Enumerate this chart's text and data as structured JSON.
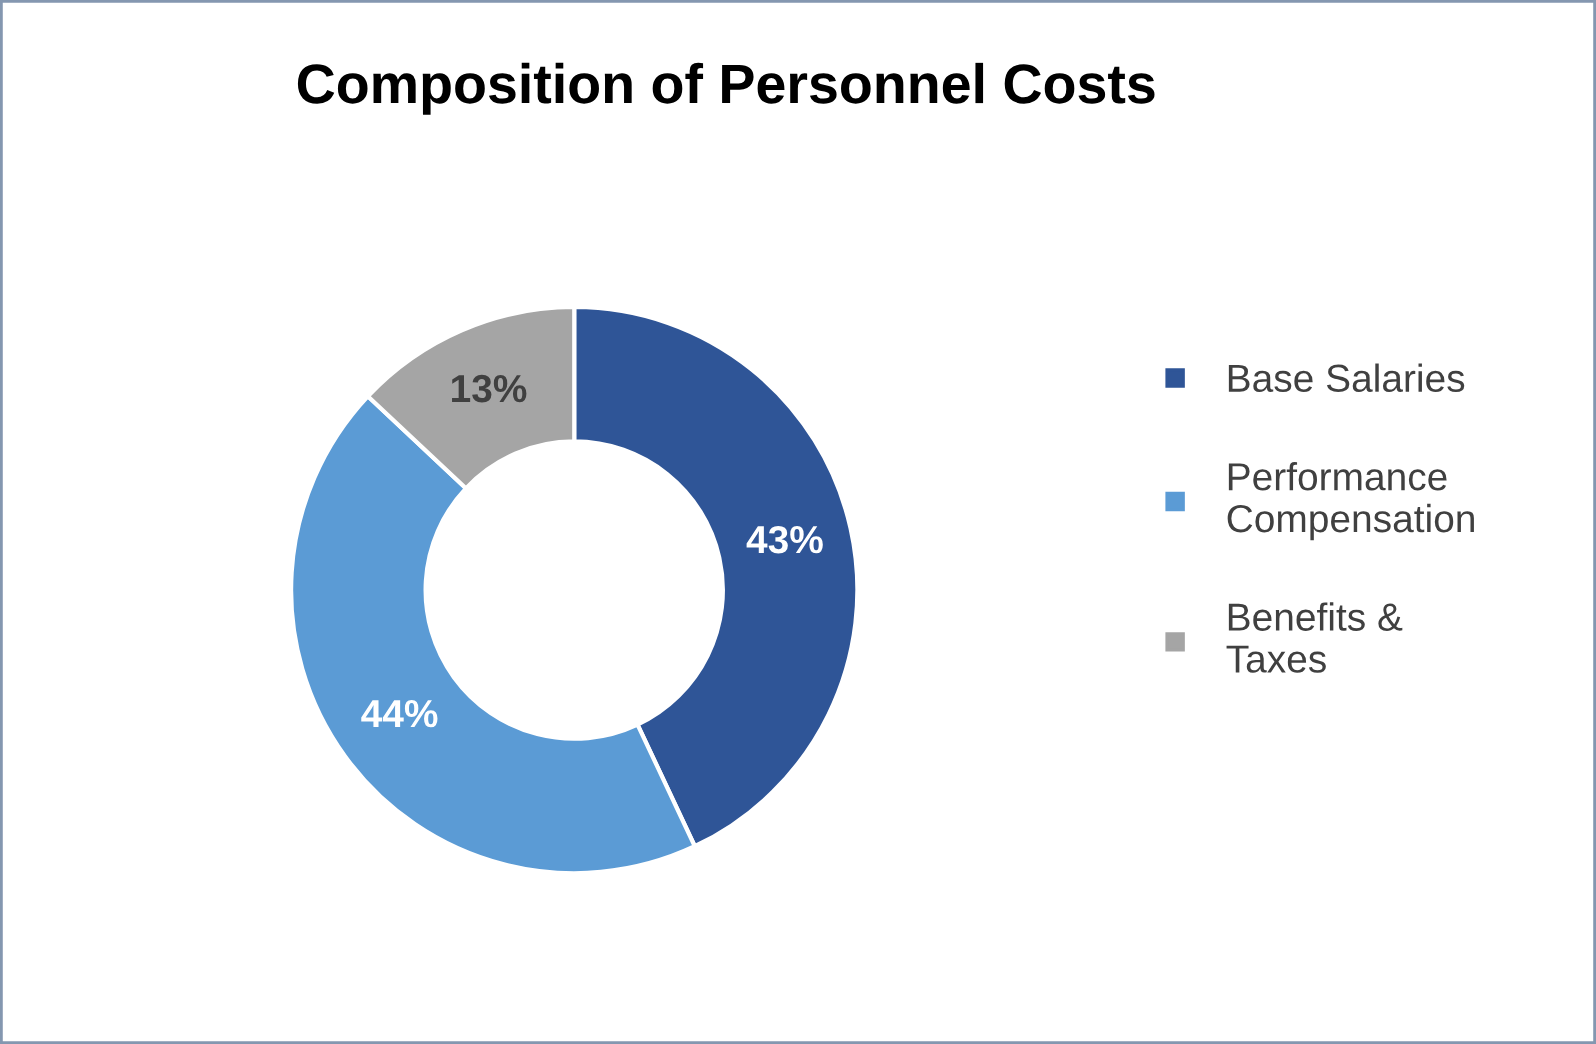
{
  "chart_data": {
    "type": "donut",
    "title": "Composition of Personnel Costs",
    "categories": [
      "Base Salaries",
      "Performance\nCompensation",
      "Benefits &\nTaxes"
    ],
    "values": [
      43,
      44,
      13
    ],
    "colors": [
      "#2f5597",
      "#5b9bd5",
      "#a5a5a5"
    ],
    "value_labels": [
      "43%",
      "44%",
      "13%"
    ],
    "legend": "right"
  }
}
